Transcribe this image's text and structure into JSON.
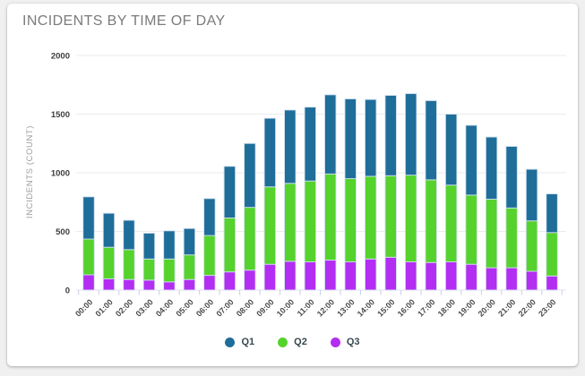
{
  "page": {
    "background": "#f0f0f0"
  },
  "card": {
    "background": "#ffffff"
  },
  "chart_data": {
    "type": "bar",
    "stacked": true,
    "title": "INCIDENTS BY TIME OF DAY",
    "ylabel": "INCIDENTS (COUNT)",
    "xlabel": "",
    "ylim": [
      0,
      2000
    ],
    "yticks": [
      0,
      500,
      1000,
      1500,
      2000
    ],
    "grid": "horizontal",
    "legend_position": "bottom-center",
    "stack_order_bottom_to_top": [
      "Q3",
      "Q2",
      "Q1"
    ],
    "categories": [
      "00:00",
      "01:00",
      "02:00",
      "03:00",
      "04:00",
      "05:00",
      "06:00",
      "07:00",
      "08:00",
      "09:00",
      "10:00",
      "11:00",
      "12:00",
      "13:00",
      "14:00",
      "15:00",
      "16:00",
      "17:00",
      "18:00",
      "19:00",
      "20:00",
      "21:00",
      "22:00",
      "23:00"
    ],
    "series": [
      {
        "name": "Q1",
        "color": "#1f6d99",
        "values": [
          360,
          290,
          250,
          220,
          240,
          225,
          315,
          440,
          545,
          585,
          625,
          630,
          675,
          680,
          655,
          685,
          695,
          675,
          605,
          595,
          530,
          525,
          440,
          330
        ]
      },
      {
        "name": "Q2",
        "color": "#55d22b",
        "values": [
          305,
          270,
          255,
          180,
          195,
          210,
          340,
          460,
          535,
          660,
          665,
          690,
          735,
          710,
          705,
          695,
          740,
          705,
          655,
          590,
          585,
          510,
          430,
          370
        ]
      },
      {
        "name": "Q3",
        "color": "#b32df2",
        "values": [
          130,
          95,
          90,
          85,
          70,
          90,
          125,
          155,
          170,
          220,
          245,
          240,
          255,
          240,
          265,
          280,
          240,
          235,
          240,
          220,
          190,
          190,
          160,
          120
        ]
      }
    ],
    "totals": [
      795,
      655,
      595,
      485,
      505,
      525,
      780,
      1055,
      1250,
      1465,
      1535,
      1560,
      1665,
      1630,
      1625,
      1660,
      1675,
      1615,
      1500,
      1405,
      1305,
      1225,
      1030,
      820
    ]
  }
}
